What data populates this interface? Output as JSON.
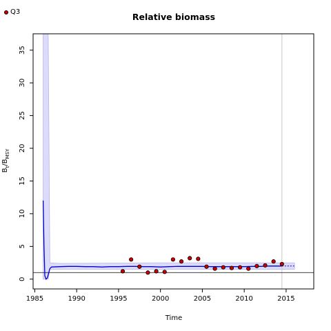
{
  "chart_data": {
    "type": "line",
    "title": "Relative biomass",
    "xlabel": "Time",
    "ylabel_main": "B",
    "ylabel_sub1": "t",
    "ylabel_mid": "/B",
    "ylabel_sub2": "MSY",
    "xlim": [
      1984.8,
      2018.3
    ],
    "ylim": [
      -1.5,
      37.5
    ],
    "x_ticks": [
      1985,
      1990,
      1995,
      2000,
      2005,
      2010,
      2015
    ],
    "y_ticks": [
      0,
      5,
      10,
      15,
      20,
      25,
      30,
      35
    ],
    "reference_line_y": 1,
    "vertical_line_x": 2014.5,
    "series": [
      {
        "kind": "estimate",
        "color": "#0000cc",
        "x": [
          1986.0,
          1986.1,
          1986.2,
          1986.35,
          1986.5,
          1986.65,
          1986.8,
          1987,
          1988,
          1989,
          1990,
          1991,
          1992,
          1993,
          1994,
          1995,
          1996,
          1997,
          1998,
          1999,
          2000,
          2001,
          2002,
          2003,
          2004,
          2005,
          2006,
          2007,
          2008,
          2009,
          2010,
          2011,
          2012,
          2013,
          2014,
          2014.5
        ],
        "values": [
          12,
          5,
          0.5,
          0.0,
          0.2,
          0.9,
          1.6,
          1.85,
          1.9,
          1.95,
          1.95,
          1.9,
          1.9,
          1.85,
          1.9,
          1.9,
          1.95,
          1.95,
          1.9,
          1.9,
          1.85,
          1.9,
          1.95,
          1.95,
          1.95,
          1.95,
          1.9,
          1.9,
          1.9,
          1.9,
          1.9,
          1.95,
          1.95,
          2.0,
          2.0,
          2.0
        ]
      },
      {
        "kind": "forecast",
        "color": "#0000cc",
        "x": [
          2014.5,
          2016
        ],
        "values": [
          2.0,
          2.0
        ]
      },
      {
        "kind": "confidence-band",
        "color": "#dcdcfa",
        "x": [
          1986.0,
          1986.6,
          1986.8,
          1988,
          2000,
          2014.5,
          2016
        ],
        "upper": [
          37.5,
          37.5,
          2.5,
          2.4,
          2.5,
          2.5,
          2.5
        ],
        "lower": [
          0.0,
          0.0,
          1.5,
          1.5,
          1.5,
          1.5,
          1.5
        ]
      },
      {
        "kind": "index",
        "name": "Q3",
        "color": "#cc0000",
        "x": [
          1995.5,
          1996.5,
          1997.5,
          1998.5,
          1999.5,
          2000.5,
          2001.5,
          2002.5,
          2003.5,
          2004.5,
          2005.5,
          2006.5,
          2007.5,
          2008.5,
          2009.5,
          2010.5,
          2011.5,
          2012.5,
          2013.5,
          2014.5
        ],
        "values": [
          1.2,
          3.0,
          1.9,
          1.0,
          1.2,
          1.1,
          3.0,
          2.7,
          3.2,
          3.1,
          1.9,
          1.6,
          1.8,
          1.7,
          1.8,
          1.6,
          2.0,
          2.1,
          2.7,
          2.3
        ]
      }
    ]
  }
}
